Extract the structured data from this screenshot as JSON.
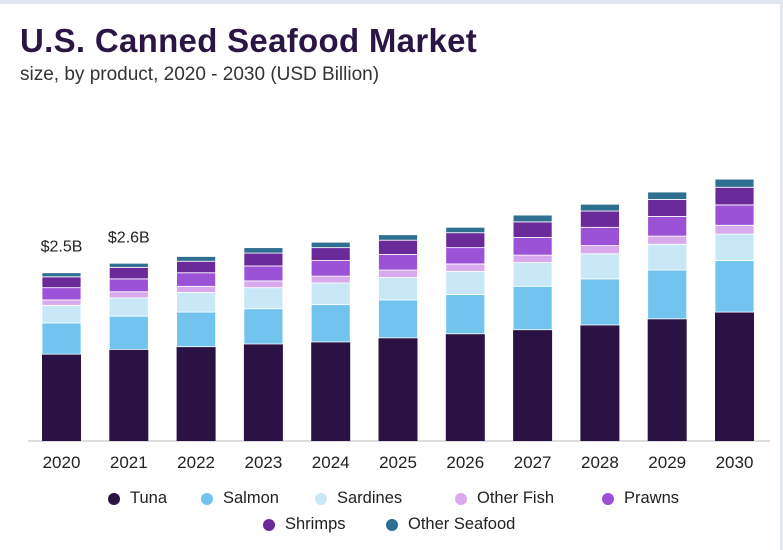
{
  "title": "U.S. Canned Seafood Market",
  "subtitle": "size, by product, 2020 - 2030 (USD Billion)",
  "chart_data": {
    "type": "bar",
    "stacked": true,
    "categories": [
      "2020",
      "2021",
      "2022",
      "2023",
      "2024",
      "2025",
      "2026",
      "2027",
      "2028",
      "2029",
      "2030"
    ],
    "ylim": [
      0,
      5.1
    ],
    "grid": false,
    "legend_position": "bottom",
    "series": [
      {
        "name": "Tuna",
        "color": "#2a1245",
        "values": [
          1.28,
          1.35,
          1.39,
          1.43,
          1.46,
          1.52,
          1.58,
          1.64,
          1.71,
          1.8,
          1.9
        ]
      },
      {
        "name": "Salmon",
        "color": "#72c4ef",
        "values": [
          0.46,
          0.49,
          0.51,
          0.52,
          0.55,
          0.56,
          0.58,
          0.64,
          0.68,
          0.72,
          0.76
        ]
      },
      {
        "name": "Sardines",
        "color": "#c8e8f8",
        "values": [
          0.26,
          0.27,
          0.29,
          0.31,
          0.32,
          0.33,
          0.34,
          0.35,
          0.37,
          0.38,
          0.39
        ]
      },
      {
        "name": "Other Fish",
        "color": "#d9a9ee",
        "values": [
          0.08,
          0.09,
          0.09,
          0.1,
          0.1,
          0.11,
          0.11,
          0.11,
          0.12,
          0.12,
          0.13
        ]
      },
      {
        "name": "Prawns",
        "color": "#9b52d6",
        "values": [
          0.18,
          0.19,
          0.2,
          0.22,
          0.23,
          0.23,
          0.24,
          0.26,
          0.27,
          0.29,
          0.3
        ]
      },
      {
        "name": "Shrimps",
        "color": "#6a2a99",
        "values": [
          0.16,
          0.17,
          0.17,
          0.19,
          0.19,
          0.21,
          0.22,
          0.23,
          0.24,
          0.25,
          0.26
        ]
      },
      {
        "name": "Other Seafood",
        "color": "#2f6f91",
        "values": [
          0.06,
          0.06,
          0.07,
          0.08,
          0.08,
          0.08,
          0.08,
          0.1,
          0.1,
          0.11,
          0.12
        ]
      }
    ],
    "annotations": [
      {
        "category": "2020",
        "text": "$2.5B"
      },
      {
        "category": "2021",
        "text": "$2.6B"
      }
    ]
  }
}
